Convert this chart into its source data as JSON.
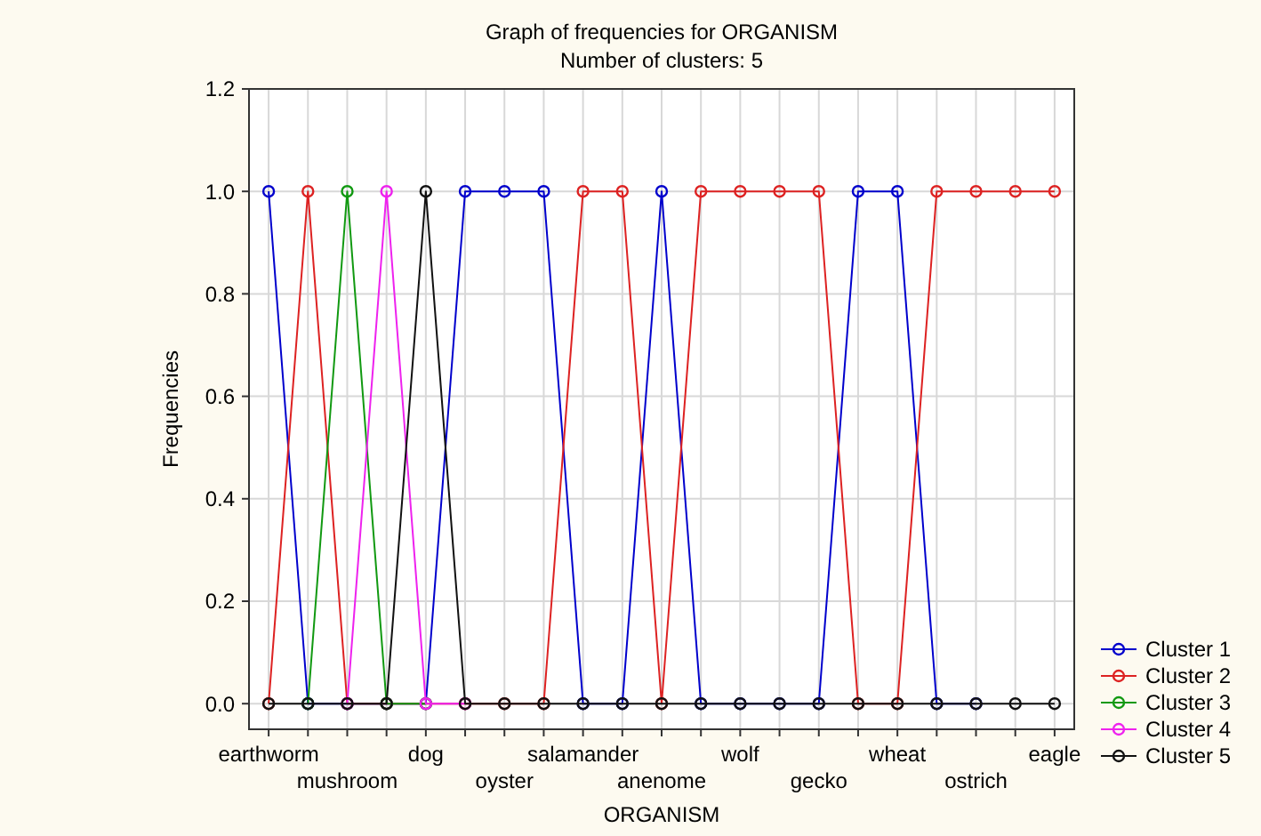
{
  "chart_data": {
    "type": "line",
    "title": "Graph of frequencies for ORGANISM",
    "subtitle": "Number of clusters: 5",
    "xlabel": "ORGANISM",
    "ylabel": "Frequencies",
    "categories": [
      "earthworm",
      null,
      "mushroom",
      null,
      "dog",
      null,
      "oyster",
      null,
      "salamander",
      null,
      "anenome",
      null,
      "wolf",
      null,
      "gecko",
      null,
      "wheat",
      null,
      "ostrich",
      null,
      "eagle"
    ],
    "series": [
      {
        "name": "Cluster 1",
        "color": "#0000cc",
        "values": [
          1,
          0,
          0,
          0,
          0,
          1,
          1,
          1,
          0,
          0,
          1,
          0,
          0,
          0,
          0,
          1,
          1,
          0,
          0,
          null,
          null
        ]
      },
      {
        "name": "Cluster 2",
        "color": "#dd2222",
        "values": [
          0,
          1,
          0,
          0,
          0,
          0,
          0,
          0,
          1,
          1,
          0,
          1,
          1,
          1,
          1,
          0,
          0,
          1,
          1,
          1,
          1
        ]
      },
      {
        "name": "Cluster 3",
        "color": "#119911",
        "values": [
          null,
          0,
          1,
          0,
          0,
          null,
          null,
          null,
          null,
          null,
          null,
          null,
          null,
          null,
          null,
          null,
          null,
          null,
          null,
          null,
          null
        ]
      },
      {
        "name": "Cluster 4",
        "color": "#ee22ee",
        "values": [
          null,
          null,
          0,
          1,
          0,
          0,
          null,
          null,
          null,
          null,
          null,
          null,
          null,
          null,
          null,
          null,
          null,
          null,
          null,
          null,
          null
        ]
      },
      {
        "name": "Cluster 5",
        "color": "#111111",
        "values": [
          0,
          0,
          0,
          0,
          1,
          0,
          0,
          0,
          0,
          0,
          0,
          0,
          0,
          0,
          0,
          0,
          0,
          0,
          0,
          0,
          0
        ]
      }
    ],
    "ylim": [
      -0.05,
      1.2
    ],
    "yticks": [
      {
        "value": 0,
        "label": "0.0"
      },
      {
        "value": 0.2,
        "label": "0.2"
      },
      {
        "value": 0.4,
        "label": "0.4"
      },
      {
        "value": 0.6,
        "label": "0.6"
      },
      {
        "value": 0.8,
        "label": "0.8"
      },
      {
        "value": 1,
        "label": "1.0"
      },
      {
        "value": 1.2,
        "label": "1.2"
      }
    ],
    "grid": true,
    "legend": "bottom right",
    "marker": "circle",
    "line_style": "solid"
  }
}
